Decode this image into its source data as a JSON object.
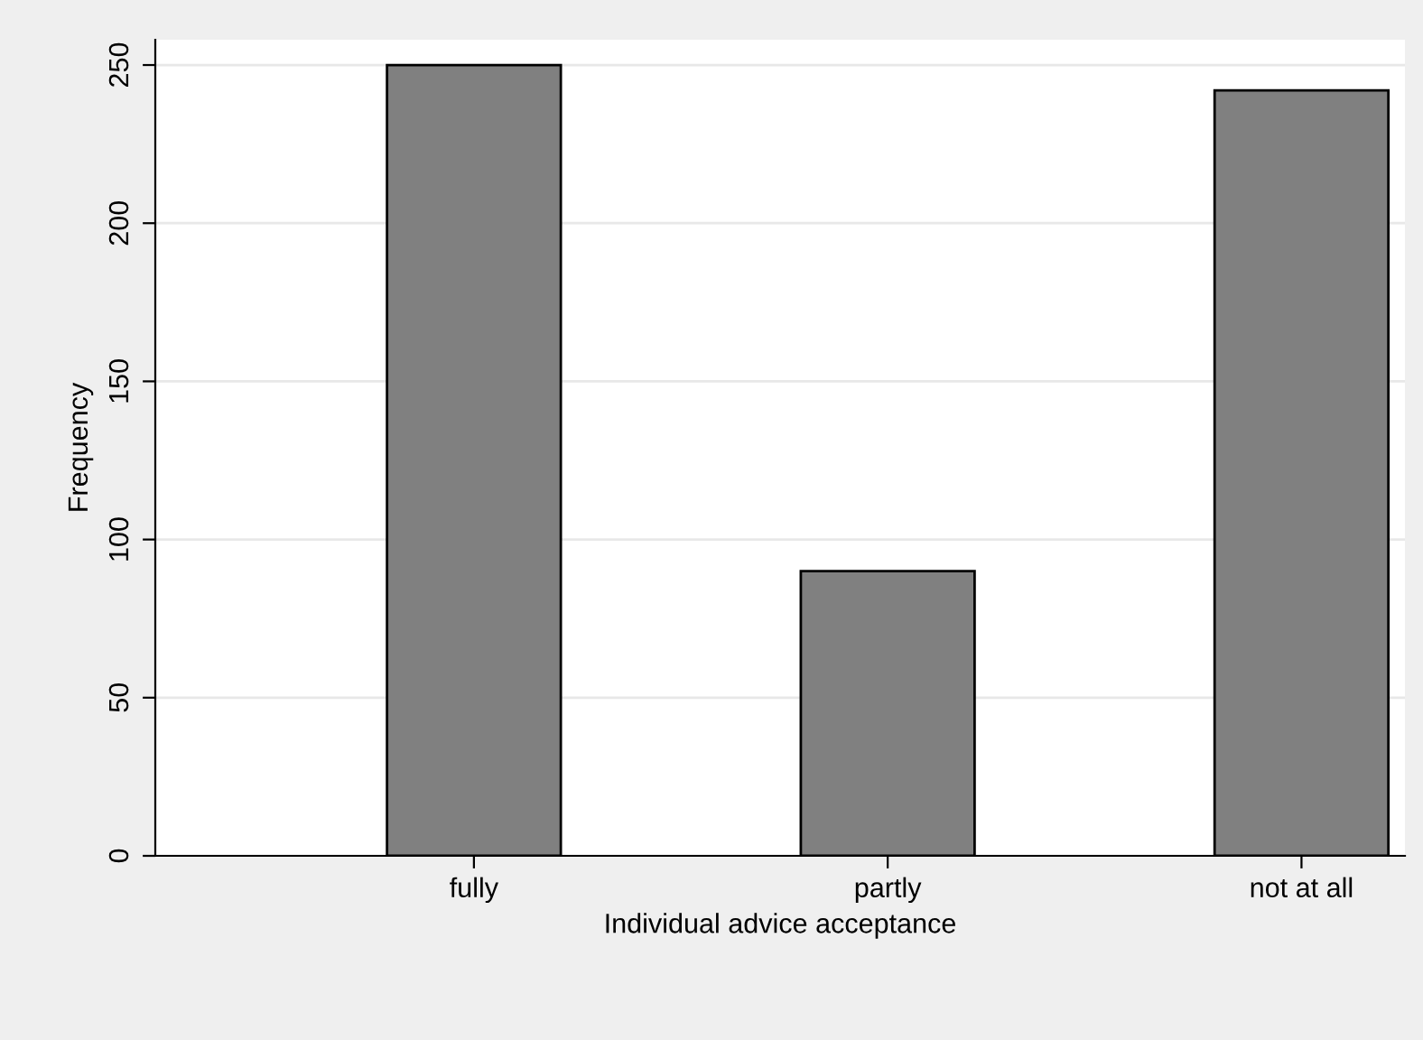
{
  "chart_data": {
    "type": "bar",
    "xlabel": "Individual advice acceptance",
    "ylabel": "Frequency",
    "categories": [
      "fully",
      "partly",
      "not at all"
    ],
    "values": [
      250,
      90,
      242
    ],
    "color": "#808080",
    "ylim": [
      0,
      258
    ],
    "yticks": [
      0,
      50,
      100,
      150,
      200,
      250
    ],
    "grid": "y"
  }
}
